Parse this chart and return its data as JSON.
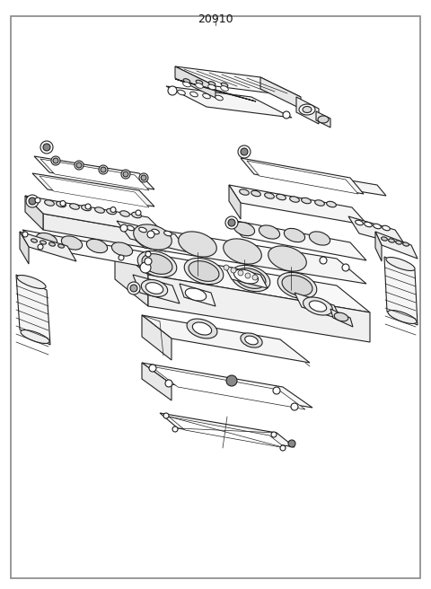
{
  "title": "20910",
  "bg_color": "#ffffff",
  "border_color": "#888888",
  "line_color": "#222222",
  "fig_width": 4.8,
  "fig_height": 6.56,
  "dpi": 100,
  "lw_main": 0.8,
  "lw_thin": 0.5,
  "lw_border": 1.2
}
